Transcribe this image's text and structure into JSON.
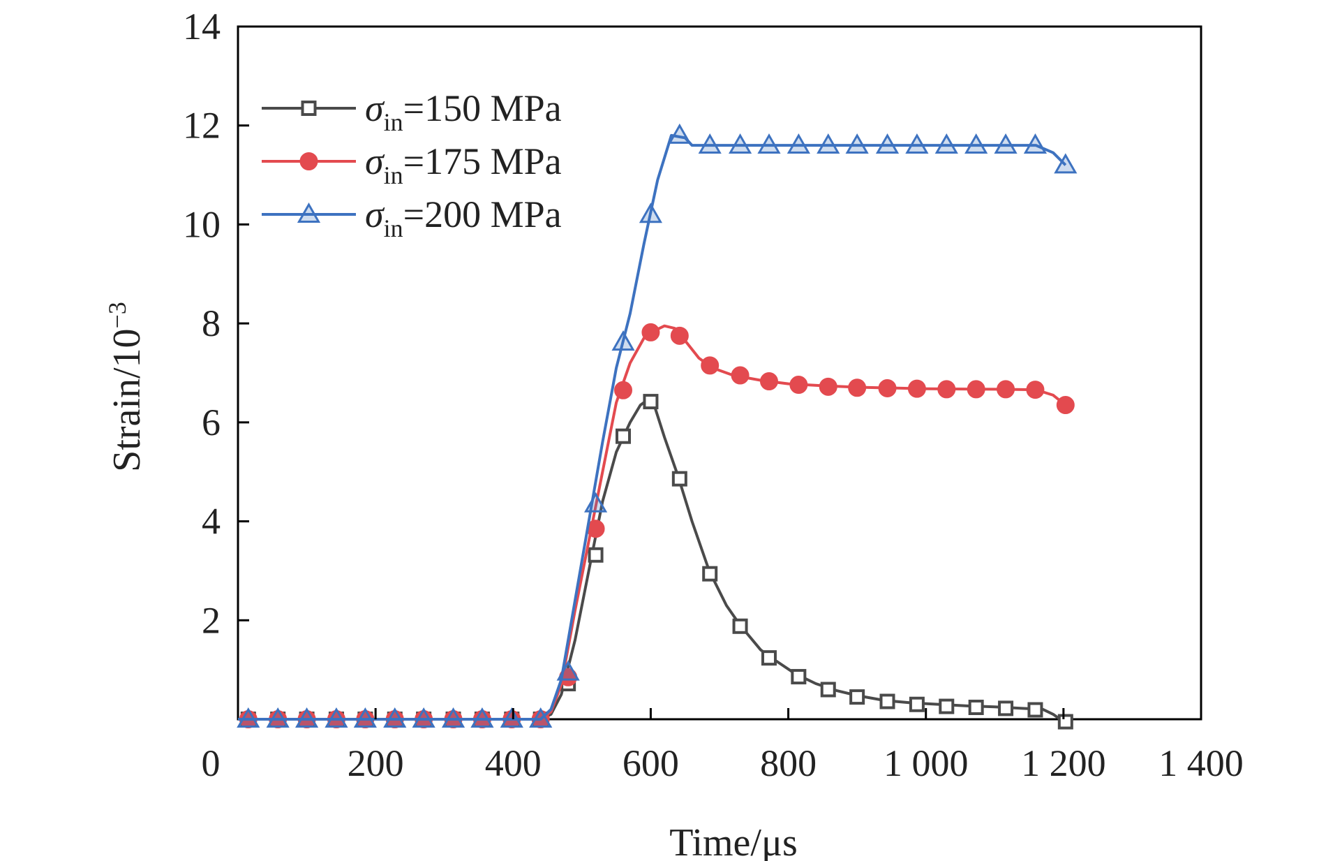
{
  "chart_data": {
    "type": "line",
    "xlabel": "Time/μs",
    "ylabel_base": "Strain/10",
    "ylabel_exp": "−3",
    "xlim": [
      0,
      1400
    ],
    "ylim": [
      0,
      14
    ],
    "x_ticks": [
      {
        "value": 0,
        "label": "0"
      },
      {
        "value": 200,
        "label": "200"
      },
      {
        "value": 400,
        "label": "400"
      },
      {
        "value": 600,
        "label": "600"
      },
      {
        "value": 800,
        "label": "800"
      },
      {
        "value": 1000,
        "label": "1 000"
      },
      {
        "value": 1200,
        "label": "1 200"
      },
      {
        "value": 1400,
        "label": "1 400"
      }
    ],
    "y_ticks": [
      {
        "value": 2,
        "label": "2"
      },
      {
        "value": 4,
        "label": "4"
      },
      {
        "value": 6,
        "label": "6"
      },
      {
        "value": 8,
        "label": "8"
      },
      {
        "value": 10,
        "label": "10"
      },
      {
        "value": 12,
        "label": "12"
      },
      {
        "value": 14,
        "label": "14"
      }
    ],
    "grid": false,
    "legend_position": "top-left",
    "series": [
      {
        "name": "σin=150 MPa",
        "legend_sym": "σ",
        "legend_sub": "in",
        "legend_rest": "=150 MPa",
        "color": "#4a4a4a",
        "marker": "square",
        "line": [
          [
            0,
            0
          ],
          [
            440,
            0
          ],
          [
            455,
            0.1
          ],
          [
            470,
            0.5
          ],
          [
            490,
            1.6
          ],
          [
            510,
            3.0
          ],
          [
            530,
            4.4
          ],
          [
            550,
            5.4
          ],
          [
            570,
            6.0
          ],
          [
            585,
            6.35
          ],
          [
            595,
            6.45
          ],
          [
            605,
            6.35
          ],
          [
            620,
            5.7
          ],
          [
            640,
            4.9
          ],
          [
            660,
            4.0
          ],
          [
            685,
            3.0
          ],
          [
            710,
            2.3
          ],
          [
            730,
            1.9
          ],
          [
            760,
            1.4
          ],
          [
            780,
            1.2
          ],
          [
            810,
            0.92
          ],
          [
            840,
            0.72
          ],
          [
            870,
            0.58
          ],
          [
            900,
            0.48
          ],
          [
            940,
            0.38
          ],
          [
            980,
            0.33
          ],
          [
            1020,
            0.3
          ],
          [
            1060,
            0.27
          ],
          [
            1100,
            0.25
          ],
          [
            1140,
            0.22
          ],
          [
            1170,
            0.2
          ],
          [
            1185,
            0.1
          ],
          [
            1200,
            -0.05
          ]
        ],
        "markers": [
          [
            15,
            0
          ],
          [
            58,
            0
          ],
          [
            100,
            0
          ],
          [
            143,
            0
          ],
          [
            185,
            0
          ],
          [
            228,
            0
          ],
          [
            270,
            0
          ],
          [
            313,
            0
          ],
          [
            355,
            0
          ],
          [
            398,
            0
          ],
          [
            440,
            0
          ],
          [
            480,
            0.72
          ],
          [
            520,
            3.32
          ],
          [
            560,
            5.72
          ],
          [
            600,
            6.42
          ],
          [
            642,
            4.86
          ],
          [
            686,
            2.94
          ],
          [
            730,
            1.88
          ],
          [
            772,
            1.24
          ],
          [
            815,
            0.86
          ],
          [
            858,
            0.6
          ],
          [
            900,
            0.45
          ],
          [
            944,
            0.36
          ],
          [
            987,
            0.3
          ],
          [
            1030,
            0.26
          ],
          [
            1073,
            0.24
          ],
          [
            1116,
            0.22
          ],
          [
            1159,
            0.19
          ],
          [
            1203,
            -0.05
          ]
        ]
      },
      {
        "name": "σin=175 MPa",
        "legend_sym": "σ",
        "legend_sub": "in",
        "legend_rest": "=175 MPa",
        "color": "#e34a4f",
        "marker": "circle",
        "line": [
          [
            0,
            0
          ],
          [
            440,
            0
          ],
          [
            455,
            0.15
          ],
          [
            470,
            0.7
          ],
          [
            490,
            2.2
          ],
          [
            510,
            3.6
          ],
          [
            530,
            5.0
          ],
          [
            550,
            6.4
          ],
          [
            570,
            7.2
          ],
          [
            590,
            7.7
          ],
          [
            605,
            7.85
          ],
          [
            620,
            7.95
          ],
          [
            635,
            7.9
          ],
          [
            650,
            7.65
          ],
          [
            670,
            7.3
          ],
          [
            690,
            7.1
          ],
          [
            720,
            6.95
          ],
          [
            760,
            6.85
          ],
          [
            800,
            6.78
          ],
          [
            850,
            6.74
          ],
          [
            900,
            6.71
          ],
          [
            1000,
            6.68
          ],
          [
            1100,
            6.67
          ],
          [
            1160,
            6.66
          ],
          [
            1185,
            6.55
          ],
          [
            1203,
            6.35
          ]
        ],
        "markers": [
          [
            15,
            0
          ],
          [
            58,
            0
          ],
          [
            100,
            0
          ],
          [
            143,
            0
          ],
          [
            185,
            0
          ],
          [
            228,
            0
          ],
          [
            270,
            0
          ],
          [
            313,
            0
          ],
          [
            355,
            0
          ],
          [
            398,
            0
          ],
          [
            440,
            0
          ],
          [
            480,
            0.85
          ],
          [
            520,
            3.85
          ],
          [
            560,
            6.65
          ],
          [
            600,
            7.82
          ],
          [
            642,
            7.75
          ],
          [
            686,
            7.15
          ],
          [
            730,
            6.95
          ],
          [
            772,
            6.83
          ],
          [
            815,
            6.76
          ],
          [
            858,
            6.72
          ],
          [
            900,
            6.7
          ],
          [
            944,
            6.69
          ],
          [
            987,
            6.68
          ],
          [
            1030,
            6.67
          ],
          [
            1073,
            6.67
          ],
          [
            1116,
            6.67
          ],
          [
            1159,
            6.66
          ],
          [
            1203,
            6.35
          ]
        ]
      },
      {
        "name": "σin=200 MPa",
        "legend_sym": "σ",
        "legend_sub": "in",
        "legend_rest": "=200 MPa",
        "color": "#3d72c0",
        "marker": "triangle",
        "line": [
          [
            0,
            0
          ],
          [
            440,
            0
          ],
          [
            455,
            0.2
          ],
          [
            470,
            0.8
          ],
          [
            490,
            2.4
          ],
          [
            510,
            4.0
          ],
          [
            530,
            5.6
          ],
          [
            550,
            7.1
          ],
          [
            570,
            8.2
          ],
          [
            590,
            9.6
          ],
          [
            610,
            10.9
          ],
          [
            630,
            11.8
          ],
          [
            650,
            11.75
          ],
          [
            660,
            11.6
          ],
          [
            700,
            11.6
          ],
          [
            800,
            11.6
          ],
          [
            900,
            11.6
          ],
          [
            1000,
            11.6
          ],
          [
            1100,
            11.6
          ],
          [
            1160,
            11.6
          ],
          [
            1185,
            11.45
          ],
          [
            1203,
            11.2
          ]
        ],
        "markers": [
          [
            15,
            0
          ],
          [
            58,
            0
          ],
          [
            100,
            0
          ],
          [
            143,
            0
          ],
          [
            185,
            0
          ],
          [
            228,
            0
          ],
          [
            270,
            0
          ],
          [
            313,
            0
          ],
          [
            355,
            0
          ],
          [
            398,
            0
          ],
          [
            440,
            0
          ],
          [
            480,
            0.95
          ],
          [
            520,
            4.35
          ],
          [
            560,
            7.62
          ],
          [
            600,
            10.2
          ],
          [
            642,
            11.8
          ],
          [
            686,
            11.6
          ],
          [
            730,
            11.6
          ],
          [
            772,
            11.6
          ],
          [
            815,
            11.6
          ],
          [
            858,
            11.6
          ],
          [
            900,
            11.6
          ],
          [
            944,
            11.6
          ],
          [
            987,
            11.6
          ],
          [
            1030,
            11.6
          ],
          [
            1073,
            11.6
          ],
          [
            1116,
            11.6
          ],
          [
            1159,
            11.6
          ],
          [
            1203,
            11.2
          ]
        ]
      }
    ]
  }
}
